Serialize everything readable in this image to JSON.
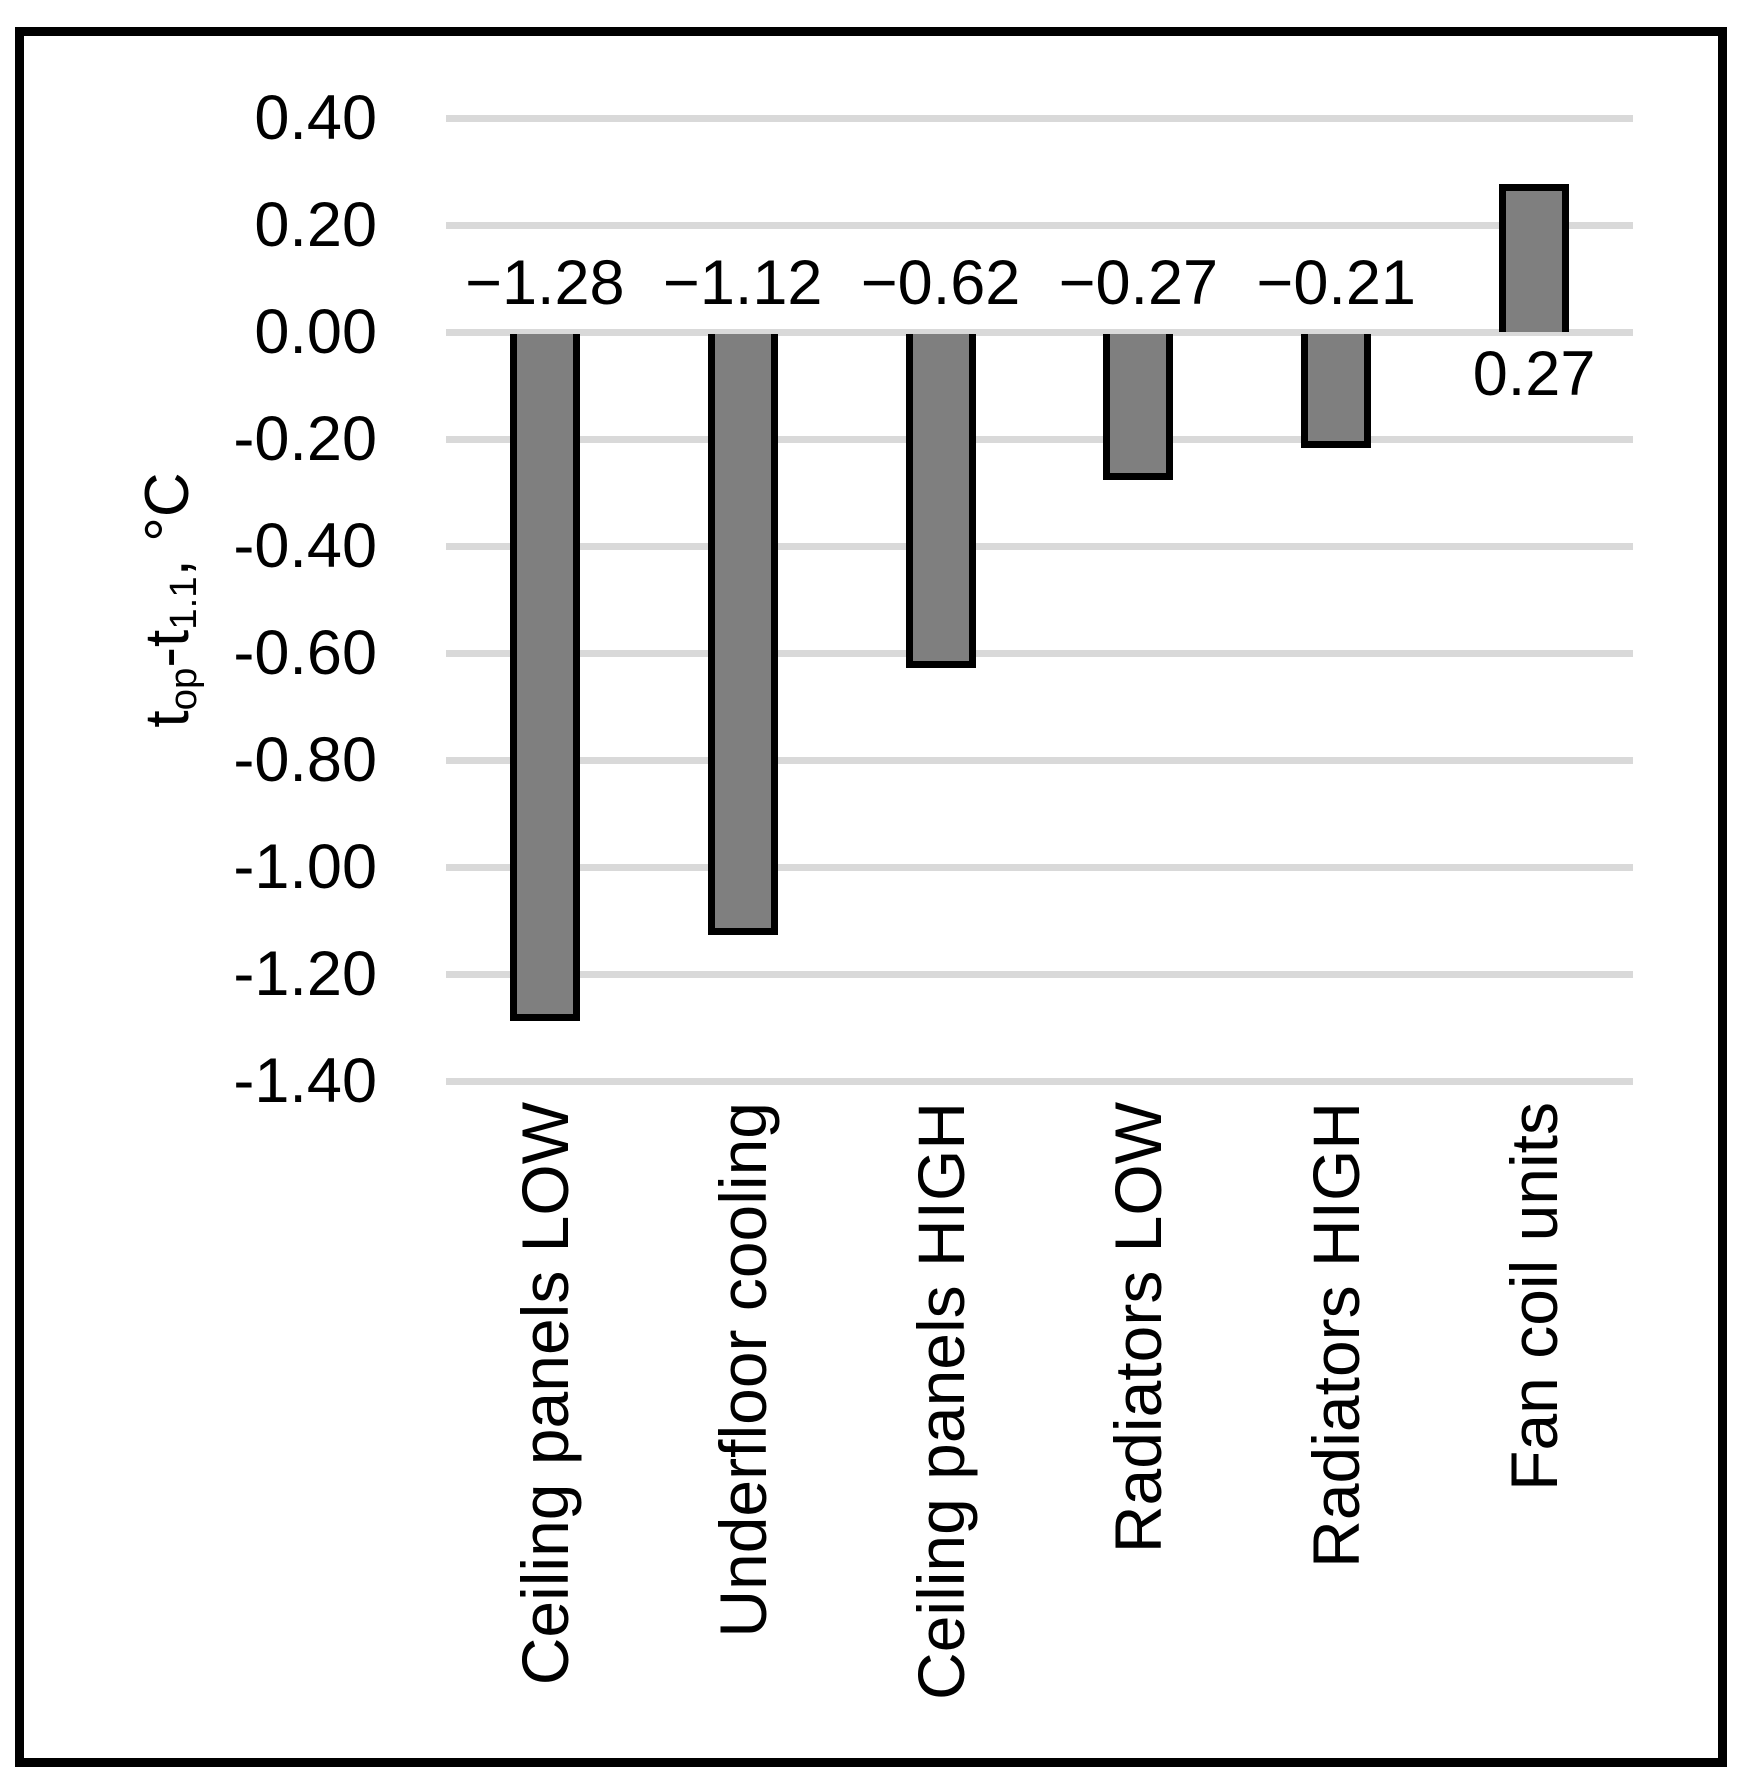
{
  "figure": {
    "background": "#FFFFFF",
    "frame_border_color": "#000000"
  },
  "chart_data": {
    "type": "bar",
    "title": "",
    "categories": [
      "Ceiling panels LOW",
      "Underfloor cooling",
      "Ceiling panels HIGH",
      "Radiators LOW",
      "Radiators HIGH",
      "Fan coil units"
    ],
    "values": [
      -1.28,
      -1.12,
      -0.62,
      -0.27,
      -0.21,
      0.27
    ],
    "data_labels": [
      "−1.28",
      "−1.12",
      "−0.62",
      "−0.27",
      "−0.21",
      "0.27"
    ],
    "xlabel": "",
    "ylabel_plain": "top-t1.1, °C",
    "ylabel_segments": [
      {
        "text": "t"
      },
      {
        "sub": "op"
      },
      {
        "text": "-t"
      },
      {
        "sub": "1.1"
      },
      {
        "text": ", °C"
      }
    ],
    "y_ticks": [
      {
        "value": 0.4,
        "label": "0.40"
      },
      {
        "value": 0.2,
        "label": "0.20"
      },
      {
        "value": 0.0,
        "label": "0.00"
      },
      {
        "value": -0.2,
        "label": "-0.20"
      },
      {
        "value": -0.4,
        "label": "-0.40"
      },
      {
        "value": -0.6,
        "label": "-0.60"
      },
      {
        "value": -0.8,
        "label": "-0.80"
      },
      {
        "value": -1.0,
        "label": "-1.00"
      },
      {
        "value": -1.2,
        "label": "-1.20"
      },
      {
        "value": -1.4,
        "label": "-1.40"
      }
    ],
    "ylim": [
      -1.4,
      0.4
    ],
    "grid": true,
    "legend": false,
    "colors": {
      "bar_fill": "#7F7F7F",
      "bar_border": "#000000",
      "gridline": "#D9D9D9",
      "text": "#000000"
    }
  }
}
